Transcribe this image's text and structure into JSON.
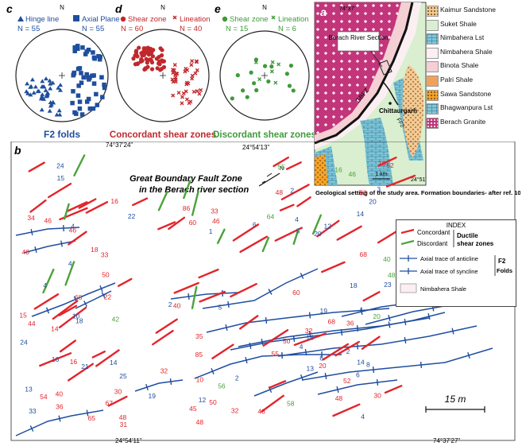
{
  "stereonets": {
    "c": {
      "letter": "c",
      "north": "N",
      "legend_left": "Hinge line",
      "legend_right": "Axial Plane",
      "n_left": "N = 55",
      "n_right": "N = 55",
      "title": "F2 folds",
      "color": "#1f4e9c"
    },
    "d": {
      "letter": "d",
      "north": "N",
      "legend_left": "Shear zone",
      "legend_right": "Lineation",
      "n_left": "N = 60",
      "n_right": "N = 40",
      "title": "Concordant shear zones",
      "color": "#c0282d"
    },
    "e": {
      "letter": "e",
      "north": "N",
      "legend_left": "Shear zone",
      "legend_right": "Lineation",
      "n_left": "N = 15",
      "n_right": "N = 6",
      "title": "Discordant shear zones",
      "color": "#3f9a3a"
    }
  },
  "map_a": {
    "letter": "a",
    "top_coord": "74°37'",
    "right_coord": "24°51'",
    "section_label": "Berach River Section",
    "fault_label": "GBFZ",
    "fault2_label": "FF2",
    "town_label": "Chittaurgarh",
    "scale_label": "1 km",
    "caption": "Geological setting of the study area. Formation boundaries- after ref. 10"
  },
  "geo_legend": [
    {
      "label": "Kaimur Sandstone",
      "color": "#f3c994",
      "pattern": "dots"
    },
    {
      "label": "Suket Shale",
      "color": "#d9efcf",
      "pattern": "none"
    },
    {
      "label": "Nimbahera Lst",
      "color": "#7ec6d8",
      "pattern": "brick"
    },
    {
      "label": "Nimbahera Shale",
      "color": "#fbeff2",
      "pattern": "none"
    },
    {
      "label": "Binota Shale",
      "color": "#f4cfd4",
      "pattern": "none"
    },
    {
      "label": "Palri Shale",
      "color": "#f2a15c",
      "pattern": "none"
    },
    {
      "label": "Sawa Sandstone",
      "color": "#f6a327",
      "pattern": "dots"
    },
    {
      "label": "Bhagwanpura Lst",
      "color": "#7ec6d8",
      "pattern": "brick"
    },
    {
      "label": "Berach Granite",
      "color": "#c2357a",
      "pattern": "cross"
    }
  ],
  "map_b": {
    "letter": "b",
    "coord_top_left": "74°37'24\"",
    "coord_top_right": "24°54'13\"",
    "coord_bottom_left": "24°54'11\"",
    "coord_bottom_right": "74°37'27\"",
    "title_line1": "Great Boundary Fault Zone",
    "title_line2": "in the Berach river section",
    "north": "N",
    "scale_label": "15 m"
  },
  "index_legend": {
    "title": "INDEX",
    "concordant": "Concordant",
    "discordant": "Discordant",
    "ductile": "Ductile",
    "shear_zones": "shear zones",
    "anticline": "Axial trace of anticline",
    "syncline": "Axial trace of syncline",
    "f2": "F2",
    "folds": "Folds",
    "shale": "Nimbahera Shale"
  },
  "dip_labels_red": [
    "34",
    "48",
    "86",
    "85",
    "31",
    "48",
    "52",
    "50",
    "54",
    "55",
    "68",
    "46",
    "40",
    "33",
    "18",
    "50",
    "16",
    "40",
    "16",
    "35",
    "33",
    "48",
    "14",
    "68",
    "44",
    "46",
    "48",
    "60",
    "30",
    "36",
    "52",
    "32",
    "60",
    "50",
    "36",
    "16",
    "30",
    "10",
    "32",
    "48",
    "20",
    "22",
    "52",
    "45",
    "15",
    "32",
    "65",
    "67",
    "46",
    "68",
    "40"
  ],
  "dip_labels_green": [
    "55",
    "46",
    "64",
    "40",
    "58",
    "56",
    "42",
    "48",
    "20",
    "16"
  ],
  "dip_labels_blue": [
    "33",
    "14",
    "24",
    "21",
    "4",
    "19",
    "5",
    "6",
    "4",
    "16",
    "4",
    "10",
    "5",
    "18",
    "2",
    "6",
    "4",
    "18",
    "15",
    "12",
    "20",
    "22",
    "24",
    "25",
    "19",
    "3",
    "12",
    "23",
    "13",
    "14",
    "4",
    "1",
    "2",
    "6",
    "16",
    "2",
    "13",
    "4",
    "20",
    "14",
    "8",
    "2"
  ]
}
